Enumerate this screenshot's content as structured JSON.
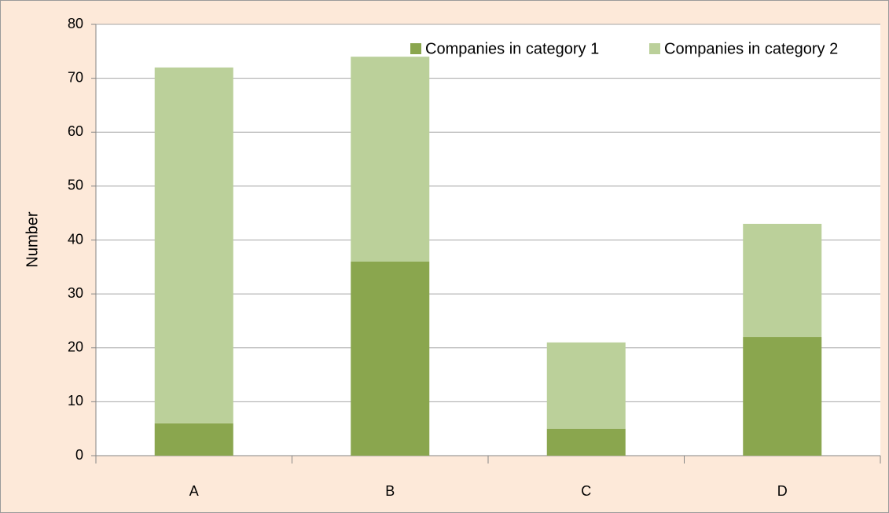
{
  "chart_data": {
    "type": "stacked_bar",
    "categories": [
      "A",
      "B",
      "C",
      "D"
    ],
    "series": [
      {
        "name": "Companies in category 1",
        "color": "#8aa64e",
        "values": [
          6,
          36,
          5,
          22
        ]
      },
      {
        "name": "Companies in category 2",
        "color": "#bbd09a",
        "values": [
          66,
          38,
          16,
          21
        ]
      }
    ],
    "y_label": "Number",
    "ylim": [
      0,
      80
    ],
    "yticks": [
      0,
      10,
      20,
      30,
      40,
      50,
      60,
      70,
      80
    ],
    "grid": true,
    "legend": "upper right"
  }
}
